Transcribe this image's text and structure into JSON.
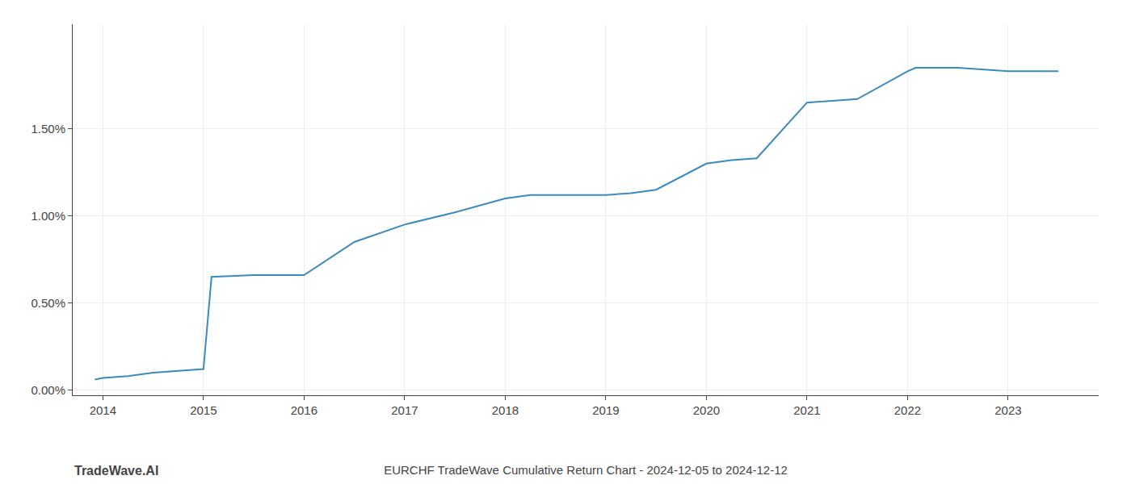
{
  "chart_data": {
    "type": "line",
    "title": "EURCHF TradeWave Cumulative Return Chart - 2024-12-05 to 2024-12-12",
    "annotations": [
      "TradeWave.AI"
    ],
    "x": [
      2013.92,
      2014.0,
      2014.25,
      2014.5,
      2014.75,
      2015.0,
      2015.08,
      2015.5,
      2016.0,
      2016.5,
      2017.0,
      2017.5,
      2018.0,
      2018.25,
      2018.5,
      2019.0,
      2019.25,
      2019.5,
      2020.0,
      2020.25,
      2020.5,
      2021.0,
      2021.5,
      2022.0,
      2022.08,
      2022.5,
      2023.0,
      2023.5
    ],
    "values": [
      0.0006,
      0.0007,
      0.0008,
      0.001,
      0.0011,
      0.0012,
      0.0065,
      0.0066,
      0.0066,
      0.0085,
      0.0095,
      0.0102,
      0.011,
      0.0112,
      0.0112,
      0.0112,
      0.0113,
      0.0115,
      0.013,
      0.0132,
      0.0133,
      0.0165,
      0.0167,
      0.0183,
      0.0185,
      0.0185,
      0.0183,
      0.0183
    ],
    "color": "#3a8abf",
    "xlim": [
      2013.7,
      2023.9
    ],
    "ylim": [
      -0.0003,
      0.021
    ],
    "xticks": [
      2014,
      2015,
      2016,
      2017,
      2018,
      2019,
      2020,
      2021,
      2022,
      2023
    ],
    "yticks": [
      {
        "value": 0.0,
        "label": "0.00%"
      },
      {
        "value": 0.005,
        "label": "0.50%"
      },
      {
        "value": 0.01,
        "label": "1.00%"
      },
      {
        "value": 0.015,
        "label": "1.50%"
      }
    ],
    "grid": true
  }
}
